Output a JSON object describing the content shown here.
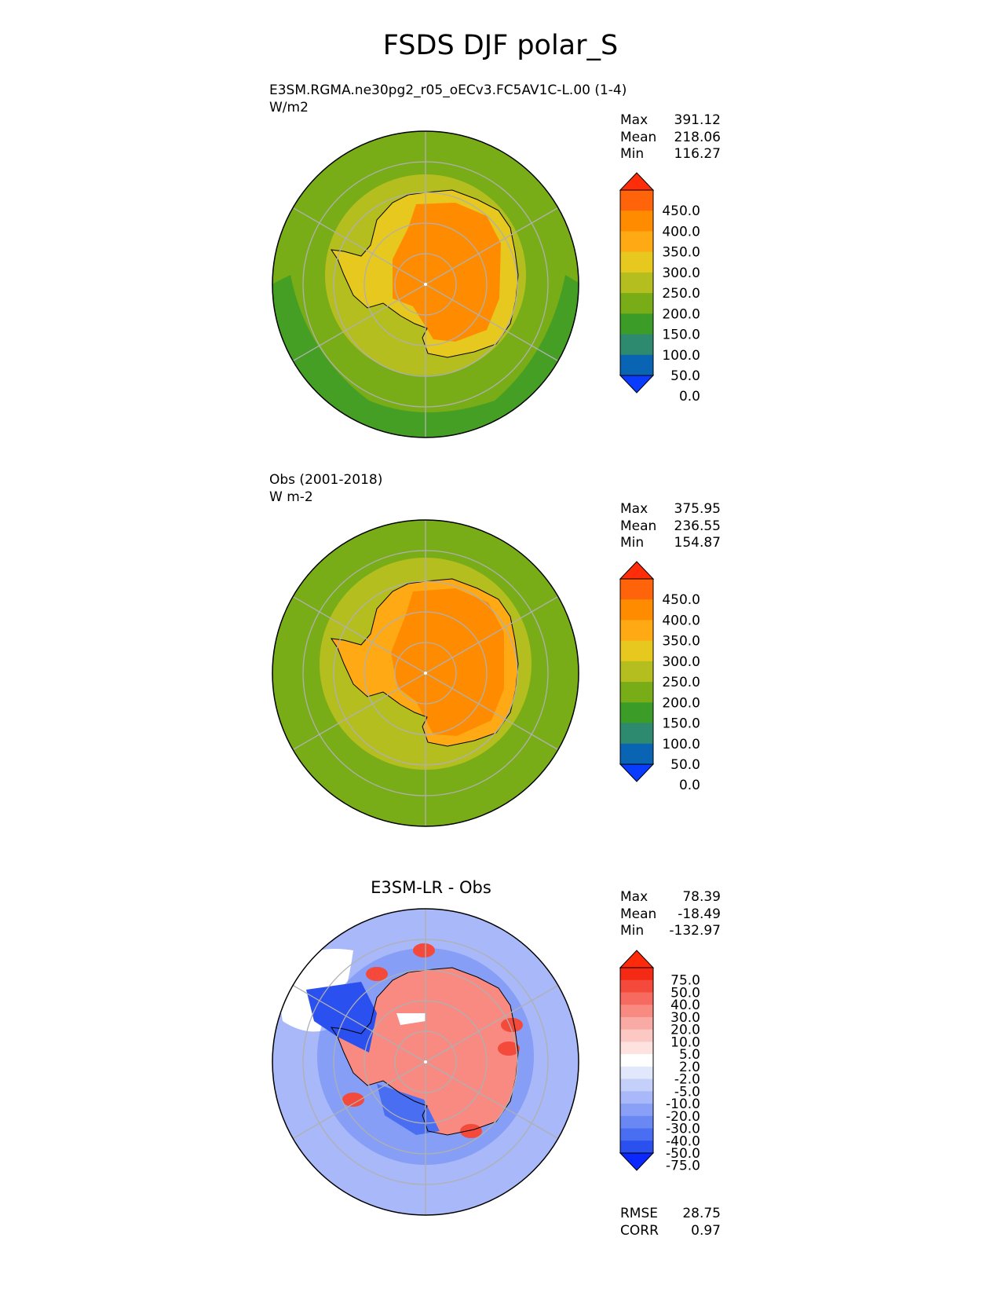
{
  "title": "FSDS DJF polar_S",
  "panels": [
    {
      "title_line1": "E3SM.RGMA.ne30pg2_r05_oECv3.FC5AV1C-L.00 (1-4)",
      "title_line2": "W/m2",
      "stats": [
        {
          "label": "Max",
          "value": "391.12"
        },
        {
          "label": "Mean",
          "value": "218.06"
        },
        {
          "label": "Min",
          "value": "116.27"
        }
      ]
    },
    {
      "title_line1": "Obs (2001-2018)",
      "title_line2": "W m-2",
      "stats": [
        {
          "label": "Max",
          "value": "375.95"
        },
        {
          "label": "Mean",
          "value": "236.55"
        },
        {
          "label": "Min",
          "value": "154.87"
        }
      ]
    },
    {
      "title": "E3SM-LR - Obs",
      "stats": [
        {
          "label": "Max",
          "value": "78.39"
        },
        {
          "label": "Mean",
          "value": "-18.49"
        },
        {
          "label": "Min",
          "value": "-132.97"
        }
      ],
      "metrics": [
        {
          "label": "RMSE",
          "value": "28.75"
        },
        {
          "label": "CORR",
          "value": "0.97"
        }
      ]
    }
  ],
  "chart_data": [
    {
      "type": "heatmap",
      "projection": "south-polar-stereographic",
      "title": "E3SM.RGMA.ne30pg2_r05_oECv3.FC5AV1C-L.00 (1-4)",
      "units": "W/m2",
      "colorbar": {
        "levels": [
          0,
          50,
          100,
          150,
          200,
          250,
          300,
          350,
          400,
          450
        ],
        "tick_labels": [
          "450.0",
          "400.0",
          "350.0",
          "300.0",
          "250.0",
          "200.0",
          "150.0",
          "100.0",
          "50.0",
          "0.0"
        ],
        "colors": [
          "#0a3cff",
          "#0a64b4",
          "#2e8a6e",
          "#3c9c28",
          "#78ad18",
          "#b4be1e",
          "#e6c81e",
          "#ffaa14",
          "#ff8c00",
          "#ff640a",
          "#ff2d0a"
        ]
      },
      "regions": [
        {
          "name": "antarctic-interior",
          "value": 375
        },
        {
          "name": "antarctic-coast",
          "value": 275
        },
        {
          "name": "sea-ice-zone",
          "value": 225
        },
        {
          "name": "southern-ocean",
          "value": 175
        },
        {
          "name": "outer-ocean",
          "value": 125
        }
      ]
    },
    {
      "type": "heatmap",
      "projection": "south-polar-stereographic",
      "title": "Obs (2001-2018)",
      "units": "W m-2",
      "colorbar": {
        "levels": [
          0,
          50,
          100,
          150,
          200,
          250,
          300,
          350,
          400,
          450
        ],
        "tick_labels": [
          "450.0",
          "400.0",
          "350.0",
          "300.0",
          "250.0",
          "200.0",
          "150.0",
          "100.0",
          "50.0",
          "0.0"
        ],
        "colors": [
          "#0a3cff",
          "#0a64b4",
          "#2e8a6e",
          "#3c9c28",
          "#78ad18",
          "#b4be1e",
          "#e6c81e",
          "#ffaa14",
          "#ff8c00",
          "#ff640a",
          "#ff2d0a"
        ]
      },
      "regions": [
        {
          "name": "antarctic-interior",
          "value": 375
        },
        {
          "name": "antarctic-coast",
          "value": 325
        },
        {
          "name": "sea-ice-zone",
          "value": 225
        },
        {
          "name": "southern-ocean",
          "value": 175
        }
      ]
    },
    {
      "type": "heatmap",
      "projection": "south-polar-stereographic",
      "title": "E3SM-LR - Obs",
      "colorbar": {
        "levels": [
          -75,
          -50,
          -40,
          -30,
          -20,
          -10,
          -5,
          -2,
          2,
          5,
          10,
          20,
          30,
          40,
          50,
          75
        ],
        "tick_labels": [
          "75.0",
          "50.0",
          "40.0",
          "30.0",
          "20.0",
          "10.0",
          "5.0",
          "2.0",
          "-2.0",
          "-5.0",
          "-10.0",
          "-20.0",
          "-30.0",
          "-40.0",
          "-50.0",
          "-75.0"
        ],
        "colors": [
          "#0a28ff",
          "#2a50f0",
          "#4a6ef2",
          "#6a88f4",
          "#8aa0f6",
          "#a8b8f8",
          "#c4d0fa",
          "#e2e8fc",
          "#ffffff",
          "#fde2e0",
          "#fcc8c4",
          "#faaaa4",
          "#f88a82",
          "#f66a60",
          "#f44a3c",
          "#f42a14",
          "#ff2a0a"
        ]
      },
      "regions": [
        {
          "name": "antarctic-interior",
          "value": 20
        },
        {
          "name": "coastal-band",
          "value": -40
        },
        {
          "name": "southern-ocean",
          "value": -20
        },
        {
          "name": "coastal-hotspots",
          "value": 40
        }
      ]
    }
  ]
}
